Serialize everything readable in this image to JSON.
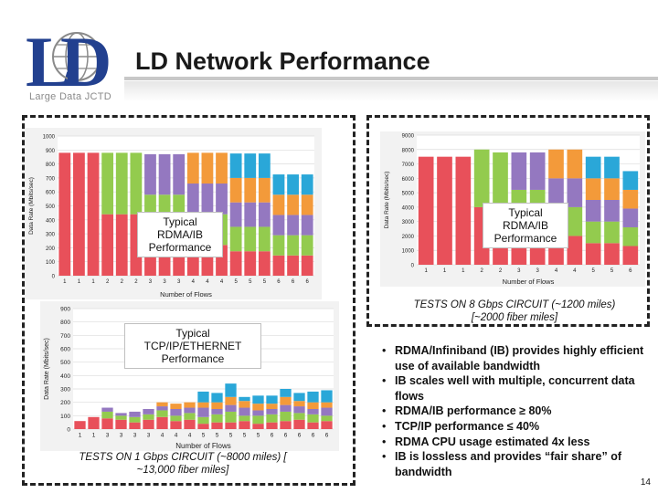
{
  "slide": {
    "title": "LD Network Performance",
    "page_number": "14"
  },
  "logo": {
    "letters": "LD",
    "caption": "Large Data JCTD"
  },
  "overlays": {
    "chart1_label": "Typical RDMA/IB Performance",
    "chart2_label": "Typical RDMA/IB Performance",
    "chart3_label": "Typical TCP/IP/ETHERNET Performance"
  },
  "captions": {
    "right": "TESTS ON 8 Gbps CIRCUIT (~1200 miles) [~2000 fiber miles]",
    "left": "TESTS ON 1 Gbps CIRCUIT (~8000 miles) [ ~13,000 fiber miles]"
  },
  "bullets": [
    "RDMA/Infiniband (IB) provides highly efficient use of available bandwidth",
    "IB scales well with multiple, concurrent data flows",
    "RDMA/IB performance ≥ 80%",
    "TCP/IP performance ≤ 40%",
    "RDMA CPU usage estimated 4x less",
    "IB is lossless and provides “fair share” of bandwidth"
  ],
  "colors": {
    "red": "#e8505a",
    "green": "#93cb4e",
    "purple": "#9478c0",
    "orange": "#f39a3a",
    "blue": "#2aa7d8"
  },
  "chart_data": [
    {
      "type": "bar",
      "stacked": true,
      "ylabel": "Data Rate (Mbits/sec)",
      "xlabel": "Number of Flows",
      "ylim": [
        0,
        1000
      ],
      "yticks": [
        0,
        100,
        200,
        300,
        400,
        500,
        600,
        700,
        800,
        900,
        1000
      ],
      "categories": [
        "1",
        "1",
        "1",
        "2",
        "2",
        "2",
        "3",
        "3",
        "3",
        "4",
        "4",
        "4",
        "5",
        "5",
        "5",
        "6",
        "6",
        "6"
      ],
      "series": [
        {
          "color": "red",
          "values": [
            880,
            880,
            880,
            440,
            440,
            440,
            290,
            290,
            290,
            220,
            220,
            220,
            175,
            175,
            175,
            145,
            145,
            145
          ]
        },
        {
          "color": "green",
          "values": [
            0,
            0,
            0,
            440,
            440,
            440,
            290,
            290,
            290,
            220,
            220,
            220,
            175,
            175,
            175,
            145,
            145,
            145
          ]
        },
        {
          "color": "purple",
          "values": [
            0,
            0,
            0,
            0,
            0,
            0,
            290,
            290,
            290,
            220,
            220,
            220,
            175,
            175,
            175,
            145,
            145,
            145
          ]
        },
        {
          "color": "orange",
          "values": [
            0,
            0,
            0,
            0,
            0,
            0,
            0,
            0,
            0,
            220,
            220,
            220,
            175,
            175,
            175,
            145,
            145,
            145
          ]
        },
        {
          "color": "blue",
          "values": [
            0,
            0,
            0,
            0,
            0,
            0,
            0,
            0,
            0,
            0,
            0,
            0,
            175,
            175,
            175,
            145,
            145,
            145
          ]
        }
      ]
    },
    {
      "type": "bar",
      "stacked": true,
      "ylabel": "Data Rate (Mbits/sec)",
      "xlabel": "Number of Flows",
      "ylim": [
        0,
        9000
      ],
      "yticks": [
        0,
        1000,
        2000,
        3000,
        4000,
        5000,
        6000,
        7000,
        8000,
        9000
      ],
      "categories": [
        "1",
        "1",
        "1",
        "2",
        "2",
        "3",
        "3",
        "4",
        "4",
        "5",
        "5",
        "6"
      ],
      "series": [
        {
          "color": "red",
          "values": [
            7500,
            7500,
            7500,
            4000,
            4000,
            2600,
            2600,
            2000,
            2000,
            1500,
            1500,
            1300
          ]
        },
        {
          "color": "green",
          "values": [
            0,
            0,
            0,
            4000,
            3800,
            2600,
            2600,
            2000,
            2000,
            1500,
            1500,
            1300
          ]
        },
        {
          "color": "purple",
          "values": [
            0,
            0,
            0,
            0,
            0,
            2600,
            2600,
            2000,
            2000,
            1500,
            1500,
            1300
          ]
        },
        {
          "color": "orange",
          "values": [
            0,
            0,
            0,
            0,
            0,
            0,
            0,
            2000,
            2000,
            1500,
            1500,
            1300
          ]
        },
        {
          "color": "blue",
          "values": [
            0,
            0,
            0,
            0,
            0,
            0,
            0,
            0,
            0,
            1500,
            1500,
            1300
          ]
        }
      ]
    },
    {
      "type": "bar",
      "stacked": true,
      "ylabel": "Data Rate (Mbits/sec)",
      "xlabel": "Number of Flows",
      "ylim": [
        0,
        900
      ],
      "yticks": [
        0,
        100,
        200,
        300,
        400,
        500,
        600,
        700,
        800,
        900
      ],
      "categories": [
        "1",
        "1",
        "3",
        "3",
        "3",
        "3",
        "4",
        "4",
        "4",
        "5",
        "5",
        "5",
        "5",
        "5",
        "6",
        "6",
        "6",
        "6",
        "6"
      ],
      "series": [
        {
          "color": "red",
          "values": [
            60,
            90,
            80,
            70,
            50,
            70,
            90,
            60,
            70,
            40,
            50,
            50,
            60,
            40,
            50,
            60,
            70,
            50,
            60
          ]
        },
        {
          "color": "green",
          "values": [
            0,
            0,
            50,
            30,
            40,
            40,
            50,
            40,
            50,
            50,
            60,
            80,
            40,
            60,
            60,
            70,
            50,
            60,
            40
          ]
        },
        {
          "color": "purple",
          "values": [
            0,
            0,
            30,
            20,
            40,
            40,
            30,
            50,
            40,
            70,
            40,
            50,
            60,
            40,
            40,
            50,
            50,
            40,
            60
          ]
        },
        {
          "color": "orange",
          "values": [
            0,
            0,
            0,
            0,
            0,
            0,
            30,
            40,
            40,
            40,
            50,
            60,
            50,
            50,
            40,
            60,
            40,
            50,
            40
          ]
        },
        {
          "color": "blue",
          "values": [
            0,
            0,
            0,
            0,
            0,
            0,
            0,
            0,
            0,
            80,
            70,
            100,
            30,
            60,
            60,
            60,
            60,
            80,
            90
          ]
        }
      ]
    }
  ]
}
